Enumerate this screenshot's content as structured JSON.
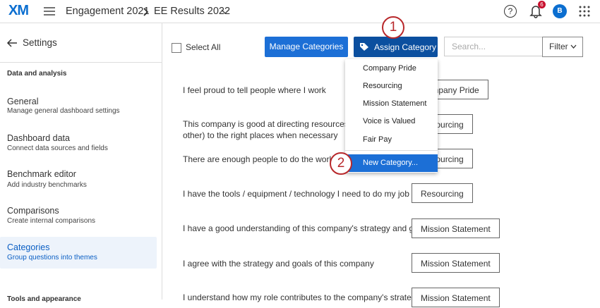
{
  "header": {
    "logo": "XM",
    "project": "Engagement 2021",
    "dashboard": "EE Results 2022",
    "help": "?",
    "notification_count": "6",
    "avatar": "B"
  },
  "sidebar": {
    "back": "Settings",
    "section": "Data and analysis",
    "items": [
      {
        "title": "General",
        "subtitle": "Manage general dashboard settings"
      },
      {
        "title": "Dashboard data",
        "subtitle": "Connect data sources and fields"
      },
      {
        "title": "Benchmark editor",
        "subtitle": "Add industry benchmarks"
      },
      {
        "title": "Comparisons",
        "subtitle": "Create internal comparisons"
      },
      {
        "title": "Categories",
        "subtitle": "Group questions into themes"
      }
    ],
    "next_section": "Tools and appearance"
  },
  "toolbar": {
    "select_all": "Select All",
    "manage": "Manage Categories",
    "assign": "Assign Category",
    "search_placeholder": "Search...",
    "filter": "Filter"
  },
  "menu": {
    "items": [
      "Company Pride",
      "Resourcing",
      "Mission Statement",
      "Voice is Valued",
      "Fair Pay"
    ],
    "new": "New Category..."
  },
  "callouts": [
    "1",
    "2"
  ],
  "questions": [
    {
      "lines": [
        "I feel proud to tell people where I work"
      ],
      "category": "Company Pride"
    },
    {
      "lines": [
        "This company is good at directing resources (hu",
        "other) to the right places when necessary"
      ],
      "category": "Resourcing"
    },
    {
      "lines": [
        "There are enough people to do the work ov"
      ],
      "category": "Resourcing"
    },
    {
      "lines": [
        "I have the tools / equipment / technology I need to do my job"
      ],
      "category": "Resourcing"
    },
    {
      "lines": [
        "I have a good understanding of this company's strategy and goals"
      ],
      "category": "Mission Statement"
    },
    {
      "lines": [
        "I agree with the strategy and goals of this company"
      ],
      "category": "Mission Statement"
    },
    {
      "lines": [
        "I understand how my role contributes to the company's strategy"
      ],
      "category": "Mission Statement"
    }
  ]
}
